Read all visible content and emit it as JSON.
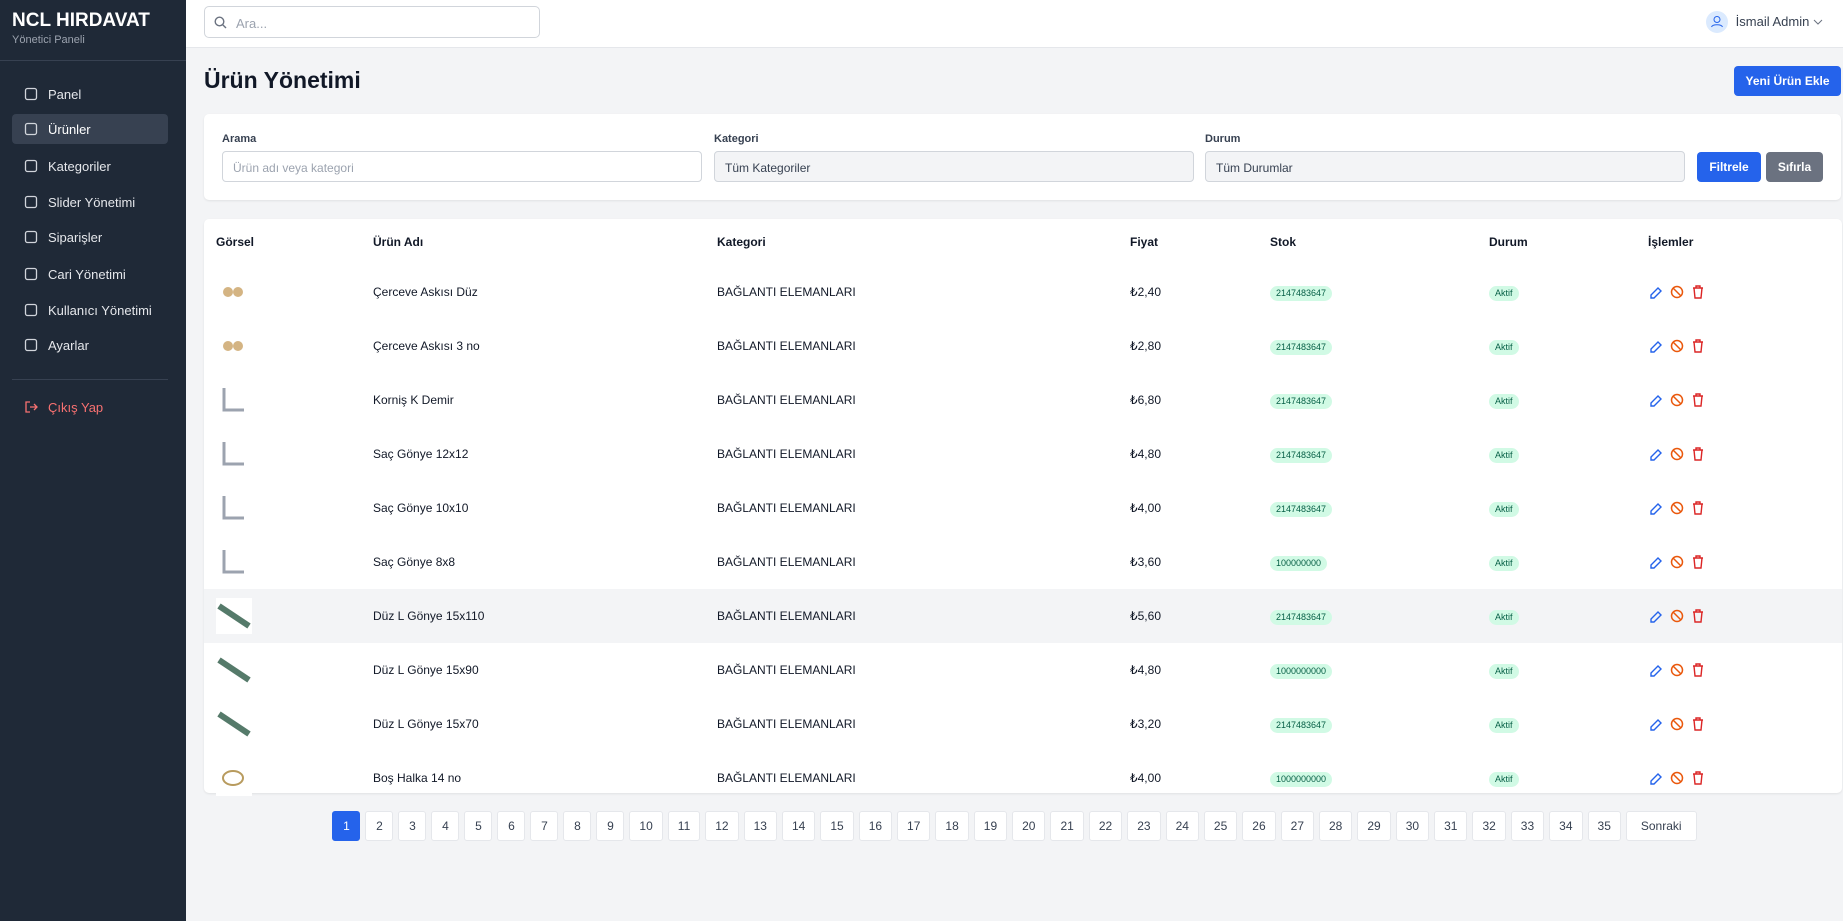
{
  "sidebar": {
    "brand": "NCL HIRDAVAT",
    "subtitle": "Yönetici Paneli",
    "menu": [
      "Panel",
      "Ürünler",
      "Kategoriler",
      "Slider Yönetimi",
      "Siparişler",
      "Cari Yönetimi",
      "Kullanıcı Yönetimi",
      "Ayarlar"
    ],
    "logout": "Çıkış Yap"
  },
  "topbar": {
    "search_placeholder": "Ara...",
    "user": "İsmail Admin"
  },
  "header": {
    "title": "Ürün Yönetimi",
    "add_button": "Yeni Ürün Ekle"
  },
  "filters": {
    "search_label": "Arama",
    "search_placeholder": "Ürün adı veya kategori",
    "category_label": "Kategori",
    "category_value": "Tüm Kategoriler",
    "status_label": "Durum",
    "status_value": "Tüm Durumlar",
    "filter_button": "Filtrele",
    "reset_button": "Sıfırla"
  },
  "table": {
    "columns": [
      "Görsel",
      "Ürün Adı",
      "Kategori",
      "Fiyat",
      "Stok",
      "Durum",
      "İşlemler"
    ],
    "rows": [
      [
        "Çerceve Askısı Düz",
        "BAĞLANTI ELEMANLARI",
        "₺2,40",
        "2147483647",
        "Aktif"
      ],
      [
        "Çerceve Askısı 3 no",
        "BAĞLANTI ELEMANLARI",
        "₺2,80",
        "2147483647",
        "Aktif"
      ],
      [
        "Korniş K Demir",
        "BAĞLANTI ELEMANLARI",
        "₺6,80",
        "2147483647",
        "Aktif"
      ],
      [
        "Saç Gönye 12x12",
        "BAĞLANTI ELEMANLARI",
        "₺4,80",
        "2147483647",
        "Aktif"
      ],
      [
        "Saç Gönye 10x10",
        "BAĞLANTI ELEMANLARI",
        "₺4,00",
        "2147483647",
        "Aktif"
      ],
      [
        "Saç Gönye 8x8",
        "BAĞLANTI ELEMANLARI",
        "₺3,60",
        "100000000",
        "Aktif"
      ],
      [
        "Düz L Gönye 15x110",
        "BAĞLANTI ELEMANLARI",
        "₺5,60",
        "2147483647",
        "Aktif"
      ],
      [
        "Düz L Gönye 15x90",
        "BAĞLANTI ELEMANLARI",
        "₺4,80",
        "1000000000",
        "Aktif"
      ],
      [
        "Düz L Gönye 15x70",
        "BAĞLANTI ELEMANLARI",
        "₺3,20",
        "2147483647",
        "Aktif"
      ],
      [
        "Boş Halka 14 no",
        "BAĞLANTI ELEMANLARI",
        "₺4,00",
        "1000000000",
        "Aktif"
      ]
    ]
  },
  "pagination": {
    "pages": [
      "1",
      "2",
      "3",
      "4",
      "5",
      "6",
      "7",
      "8",
      "9",
      "10",
      "11",
      "12",
      "13",
      "14",
      "15",
      "16",
      "17",
      "18",
      "19",
      "20",
      "21",
      "22",
      "23",
      "24",
      "25",
      "26",
      "27",
      "28",
      "29",
      "30",
      "31",
      "32",
      "33",
      "34",
      "35"
    ],
    "next": "Sonraki"
  }
}
